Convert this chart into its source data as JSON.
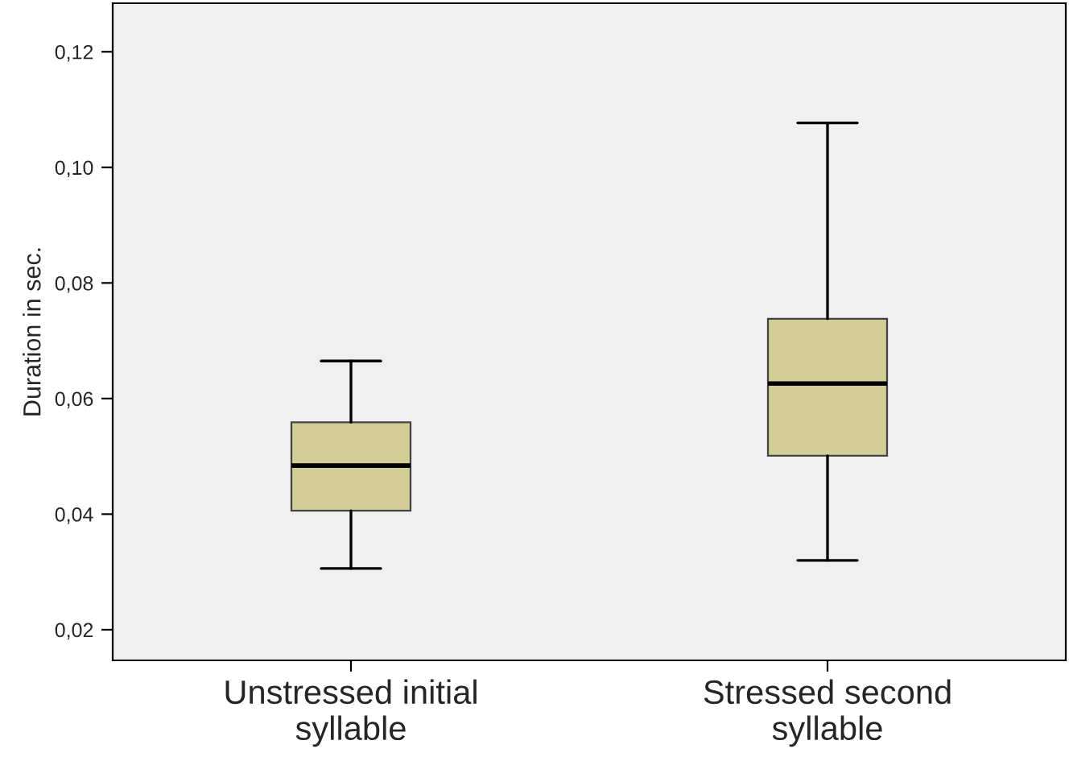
{
  "chart_data": {
    "type": "box",
    "ylabel": "Duration in sec.",
    "categories": [
      "Unstressed initial\nsyllable",
      "Stressed second\nsyllable"
    ],
    "boxes": [
      {
        "low": 0.0306,
        "q1": 0.0406,
        "median": 0.0484,
        "q3": 0.0559,
        "high": 0.0665
      },
      {
        "low": 0.032,
        "q1": 0.0501,
        "median": 0.0626,
        "q3": 0.0738,
        "high": 0.1077
      }
    ],
    "color": "#d3ce98",
    "ylim": [
      0.0147,
      0.1284
    ],
    "yticks": [
      {
        "value": 0.02,
        "label": "0,02"
      },
      {
        "value": 0.04,
        "label": "0,04"
      },
      {
        "value": 0.06,
        "label": "0,06"
      },
      {
        "value": 0.08,
        "label": "0,08"
      },
      {
        "value": 0.1,
        "label": "0,10"
      },
      {
        "value": 0.12,
        "label": "0,12"
      }
    ],
    "grid": false
  }
}
